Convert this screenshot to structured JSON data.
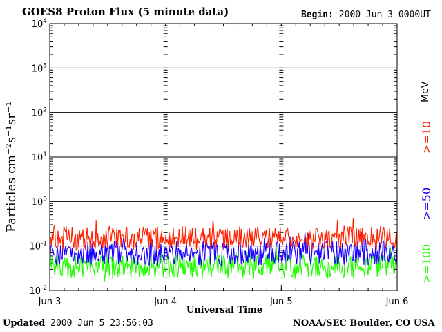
{
  "header": {
    "title": "GOES8 Proton Flux (5 minute data)",
    "begin_label": "Begin:",
    "begin_value": "2000 Jun 3 0000UT"
  },
  "footer": {
    "updated_label": "Updated",
    "updated_value": "2000 Jun  5 23:56:03",
    "credit": "NOAA/SEC Boulder, CO USA"
  },
  "chart_data": {
    "type": "line",
    "title": "GOES8 Proton Flux (5 minute data)",
    "xlabel": "Universal Time",
    "ylabel": "Particles cm⁻²s⁻¹sr⁻¹",
    "y_scale": "log",
    "ylim": [
      0.01,
      10000
    ],
    "x_categories": [
      "Jun 3",
      "Jun 4",
      "Jun 5",
      "Jun 6"
    ],
    "y_ticks": [
      {
        "base": "10",
        "exp": "-2",
        "value": 0.01
      },
      {
        "base": "10",
        "exp": "-1",
        "value": 0.1
      },
      {
        "base": "10",
        "exp": "0",
        "value": 1
      },
      {
        "base": "10",
        "exp": "1",
        "value": 10
      },
      {
        "base": "10",
        "exp": "2",
        "value": 100
      },
      {
        "base": "10",
        "exp": "3",
        "value": 1000
      },
      {
        "base": "10",
        "exp": "4",
        "value": 10000
      }
    ],
    "unit_label": "MeV",
    "grid": true,
    "series": [
      {
        "name": ">=10",
        "color": "#ff2200",
        "typical": 0.15,
        "min": 0.06,
        "max": 0.6
      },
      {
        "name": ">=50",
        "color": "#1a00ff",
        "typical": 0.07,
        "min": 0.03,
        "max": 0.2
      },
      {
        "name": ">=100",
        "color": "#22ff00",
        "typical": 0.035,
        "min": 0.01,
        "max": 0.12
      }
    ]
  }
}
